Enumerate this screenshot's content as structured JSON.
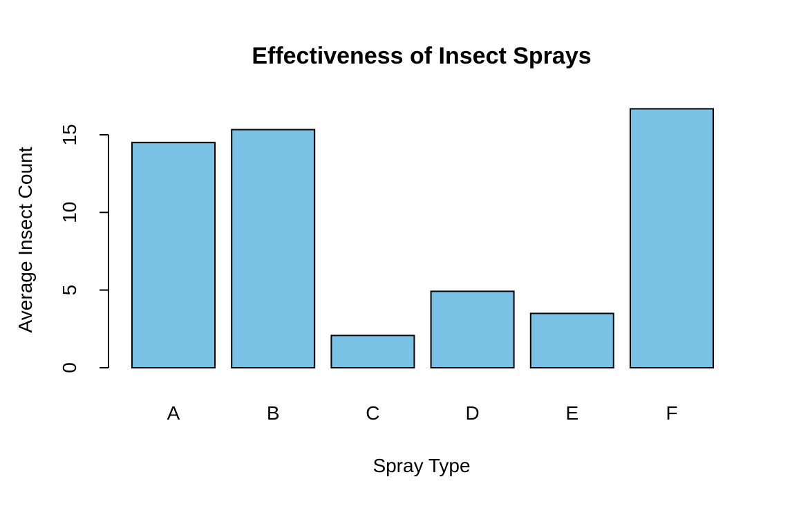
{
  "chart_data": {
    "type": "bar",
    "title": "Effectiveness of Insect Sprays",
    "xlabel": "Spray Type",
    "ylabel": "Average Insect Count",
    "categories": [
      "A",
      "B",
      "C",
      "D",
      "E",
      "F"
    ],
    "values": [
      14.5,
      15.33,
      2.08,
      4.92,
      3.5,
      16.67
    ],
    "ylim": [
      0,
      15
    ],
    "yticks": [
      0,
      5,
      10,
      15
    ],
    "ytick_labels": [
      "0",
      "5",
      "10",
      "15"
    ],
    "grid": false,
    "legend": "none",
    "colors": {
      "bar_fill": "#79C2E5",
      "bar_stroke": "#000000",
      "axis": "#000000",
      "background": "#FFFFFF"
    }
  }
}
